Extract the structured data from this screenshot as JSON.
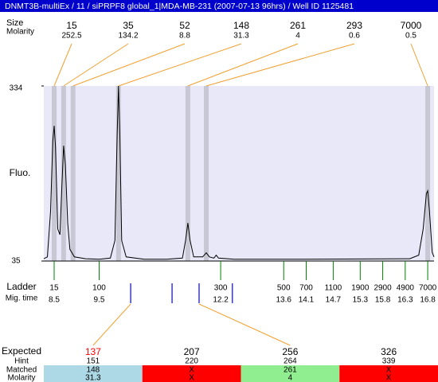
{
  "title": "DNMT3B-multiEx / 11 / siPRPF8 global_1|MDA-MB-231 (2007-07-13 96hrs) / Well ID 1125481",
  "peak_header": {
    "size": "Size",
    "molarity": "Molarity"
  },
  "peaks": [
    {
      "size": 15,
      "molarity": 252.5,
      "time": 8.5
    },
    {
      "size": 35,
      "molarity": 134.2,
      "time": 8.71
    },
    {
      "size": 52,
      "molarity": 8.8,
      "time": 8.92
    },
    {
      "size": 148,
      "molarity": 31.3,
      "time": 9.93
    },
    {
      "size": 261,
      "molarity": 4,
      "time": 11.47
    },
    {
      "size": 293,
      "molarity": 0.6,
      "time": 11.88
    },
    {
      "size": 7000,
      "molarity": 0.5,
      "time": 16.8
    }
  ],
  "plot": {
    "y_label": "Fluo.",
    "ylim": [
      35,
      334
    ],
    "yticks": [
      35,
      334
    ],
    "xlim": [
      8.27,
      16.94
    ],
    "background": "#e8e8f8",
    "band_color": "#c8c8d4",
    "color": "#000000",
    "trace": {
      "x": [
        8.27,
        8.35,
        8.42,
        8.47,
        8.5,
        8.53,
        8.58,
        8.63,
        8.67,
        8.71,
        8.75,
        8.8,
        8.85,
        8.95,
        9.2,
        9.5,
        9.75,
        9.85,
        9.9,
        9.93,
        9.96,
        10.0,
        10.1,
        10.5,
        11.0,
        11.35,
        11.42,
        11.47,
        11.52,
        11.6,
        11.8,
        11.88,
        11.95,
        12.05,
        12.1,
        12.15,
        12.5,
        14.0,
        16.4,
        16.6,
        16.7,
        16.77,
        16.8,
        16.84,
        16.9,
        16.94
      ],
      "y": [
        39,
        42,
        120,
        240,
        266,
        230,
        90,
        80,
        160,
        232,
        200,
        100,
        55,
        42,
        39,
        38,
        40,
        70,
        250,
        334,
        250,
        70,
        42,
        38,
        38,
        40,
        70,
        100,
        70,
        42,
        42,
        49,
        42,
        40,
        45,
        40,
        38,
        38,
        39,
        45,
        90,
        150,
        155,
        120,
        50,
        42
      ]
    }
  },
  "ladder": {
    "label": "Ladder",
    "time_label": "Mig. time",
    "color": "#008000",
    "sizes": [
      15,
      100,
      300,
      500,
      700,
      1100,
      1900,
      2900,
      4900,
      7000
    ],
    "times": [
      8.5,
      9.5,
      12.2,
      13.6,
      14.1,
      14.7,
      15.3,
      15.8,
      16.3,
      16.8
    ]
  },
  "expected": {
    "labels": {
      "expected": "Expected",
      "hint": "Hint",
      "matched": "Matched",
      "molarity": "Molarity"
    },
    "values": [
      137,
      207,
      256,
      326
    ],
    "value_colors": [
      "#ff0000",
      "#000000",
      "#000000",
      "#000000"
    ],
    "times": [
      10.2,
      11.12,
      11.72,
      12.46
    ],
    "hints": [
      151,
      220,
      264,
      339
    ],
    "matched": [
      148,
      "X",
      261,
      "X"
    ],
    "molarity": [
      31.3,
      "X",
      4,
      "X"
    ],
    "colors": [
      "#add8e6",
      "#ff0000",
      "#90ee90",
      "#ff0000"
    ],
    "mark_color": "#0000ff",
    "link_color": "#f0a030"
  }
}
